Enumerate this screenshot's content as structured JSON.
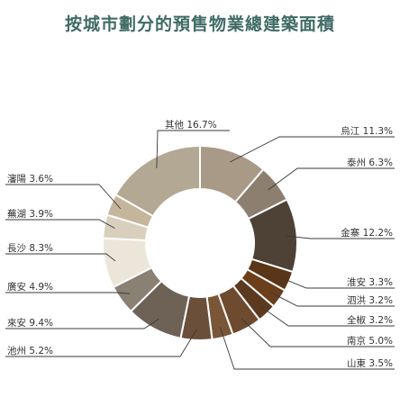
{
  "chart_data": {
    "type": "pie",
    "title": "按城市劃分的預售物業總建築面積",
    "slices": [
      {
        "label": "烏江",
        "value": 11.3,
        "text": "烏江 11.3%",
        "color": "#a89a86"
      },
      {
        "label": "泰州",
        "value": 6.3,
        "text": "泰州 6.3%",
        "color": "#8c7f6f"
      },
      {
        "label": "金寨",
        "value": 12.2,
        "text": "金寨 12.2%",
        "color": "#4e4135"
      },
      {
        "label": "淮安",
        "value": 3.3,
        "text": "淮安 3.3%",
        "color": "#5a3518"
      },
      {
        "label": "泗洪",
        "value": 3.2,
        "text": "泗洪 3.2%",
        "color": "#6b3e1c"
      },
      {
        "label": "全椒",
        "value": 3.2,
        "text": "全椒 3.2%",
        "color": "#5c3a20"
      },
      {
        "label": "南京",
        "value": 5.0,
        "text": "南京 5.0%",
        "color": "#6e4a2e"
      },
      {
        "label": "山東",
        "value": 3.5,
        "text": "山東 3.5%",
        "color": "#7a5638"
      },
      {
        "label": "池州",
        "value": 5.2,
        "text": "池州 5.2%",
        "color": "#6a4f3a"
      },
      {
        "label": "來安",
        "value": 9.4,
        "text": "來安 9.4%",
        "color": "#6e6256"
      },
      {
        "label": "廣安",
        "value": 4.9,
        "text": "廣安 4.9%",
        "color": "#8a8073"
      },
      {
        "label": "長沙",
        "value": 8.3,
        "text": "長沙 8.3%",
        "color": "#ece6da"
      },
      {
        "label": "蕪湖",
        "value": 3.9,
        "text": "蕪湖 3.9%",
        "color": "#d9cfbd"
      },
      {
        "label": "瀋陽",
        "value": 3.6,
        "text": "瀋陽 3.6%",
        "color": "#c4b59b"
      },
      {
        "label": "其他",
        "value": 16.7,
        "text": "其他 16.7%",
        "color": "#b3a893"
      }
    ]
  }
}
